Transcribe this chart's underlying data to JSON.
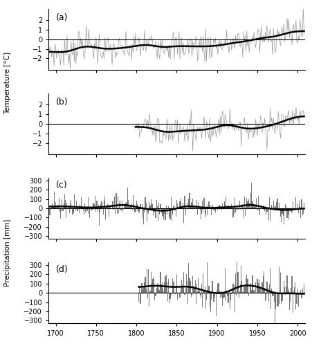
{
  "xlim": [
    1691,
    2009
  ],
  "panel_a": {
    "label": "(a)",
    "start": 1691,
    "end": 2008,
    "ylim": [
      -3.2,
      3.2
    ],
    "yticks": [
      -2,
      -1,
      0,
      1,
      2
    ],
    "ylabel": "Temperature [°C]"
  },
  "panel_b": {
    "label": "(b)",
    "start": 1799,
    "end": 2008,
    "ylim": [
      -3.2,
      3.2
    ],
    "yticks": [
      -2,
      -1,
      0,
      1,
      2
    ],
    "ylabel": ""
  },
  "panel_c": {
    "label": "(c)",
    "start": 1691,
    "end": 2008,
    "ylim": [
      -330,
      330
    ],
    "yticks": [
      -300,
      -200,
      -100,
      0,
      100,
      200,
      300
    ],
    "ylabel": "Precipitation [mm]"
  },
  "panel_d": {
    "label": "(d)",
    "start": 1803,
    "end": 2008,
    "ylim": [
      -330,
      330
    ],
    "yticks": [
      -300,
      -200,
      -100,
      0,
      100,
      200,
      300
    ],
    "ylabel": ""
  },
  "xticks": [
    1700,
    1750,
    1800,
    1850,
    1900,
    1950,
    2000
  ],
  "line_color": "#999999",
  "smooth_color": "#000000",
  "bar_color": "#777777",
  "background_color": "#ffffff",
  "smooth_sigma": 12
}
